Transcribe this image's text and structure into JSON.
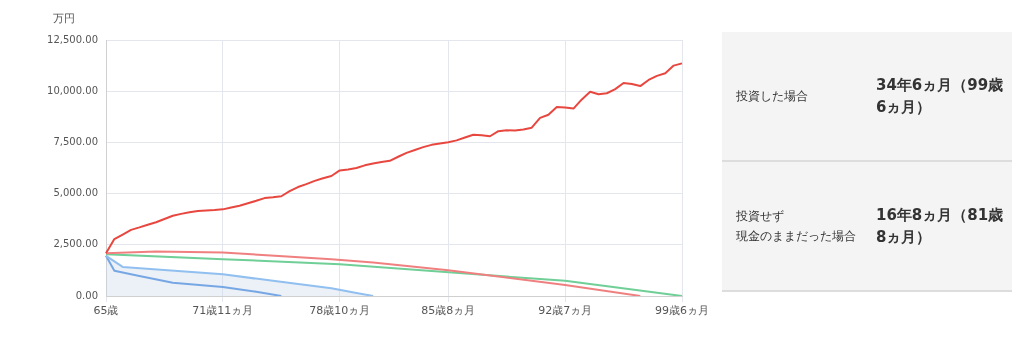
{
  "chart_data": [
    {
      "type": "line",
      "ylabel": "万円",
      "ylim": [
        0,
        12500
      ],
      "categories": [
        "65歳",
        null,
        null,
        null,
        null,
        null,
        null,
        null,
        null,
        null,
        null,
        null,
        null,
        null,
        "71歳11ヵ月",
        null,
        null,
        null,
        null,
        null,
        null,
        null,
        null,
        null,
        null,
        null,
        null,
        null,
        "78歳10ヵ月",
        null,
        null,
        null,
        null,
        null,
        null,
        null,
        null,
        null,
        null,
        null,
        null,
        "85歳8ヵ月",
        null,
        null,
        null,
        null,
        null,
        null,
        null,
        null,
        null,
        null,
        null,
        null,
        null,
        "92歳7ヵ月",
        null,
        null,
        null,
        null,
        null,
        null,
        null,
        null,
        null,
        null,
        null,
        null,
        null,
        "99歳6ヵ月"
      ],
      "yticks": [
        {
          "value": 0,
          "label": "0.00"
        },
        {
          "value": 2500,
          "label": "2,500.00"
        },
        {
          "value": 5000,
          "label": "5,000.00"
        },
        {
          "value": 7500,
          "label": "7,500.00"
        },
        {
          "value": 10000,
          "label": "10,000.00"
        },
        {
          "value": 12500,
          "label": "12,500.00"
        }
      ],
      "grid": true,
      "legend": false,
      "series": [
        {
          "color": "#e8473f",
          "values": [
            2090,
            2780,
            3000,
            3230,
            3350,
            3480,
            3600,
            3760,
            3920,
            4010,
            4090,
            4150,
            4180,
            4200,
            4230,
            4320,
            4410,
            4530,
            4650,
            4780,
            4820,
            4870,
            5120,
            5320,
            5460,
            5620,
            5750,
            5860,
            6130,
            6180,
            6250,
            6380,
            6470,
            6540,
            6600,
            6800,
            6990,
            7130,
            7270,
            7380,
            7450,
            7510,
            7600,
            7740,
            7870,
            7850,
            7800,
            8050,
            8090,
            8080,
            8130,
            8220,
            8700,
            8850,
            9230,
            9200,
            9150,
            9600,
            9970,
            9850,
            9900,
            10100,
            10400,
            10350,
            10250,
            10550,
            10750,
            10880,
            11250,
            11360
          ]
        },
        {
          "color": "#f08080",
          "values": [
            2090,
            null,
            null,
            null,
            null,
            null,
            2170,
            null,
            null,
            null,
            null,
            null,
            null,
            null,
            2120,
            null,
            null,
            null,
            null,
            null,
            null,
            null,
            null,
            null,
            null,
            null,
            null,
            1800,
            null,
            null,
            null,
            null,
            1630,
            null,
            null,
            null,
            null,
            null,
            null,
            null,
            null,
            1260,
            null,
            null,
            null,
            null,
            null,
            null,
            null,
            null,
            null,
            null,
            null,
            null,
            null,
            540,
            null,
            null,
            null,
            null,
            null,
            null,
            null,
            null,
            0,
            null,
            null,
            null,
            null,
            null
          ]
        },
        {
          "color": "#6fcf97",
          "values": [
            2040,
            null,
            null,
            null,
            null,
            null,
            null,
            null,
            null,
            null,
            null,
            null,
            null,
            null,
            1800,
            null,
            null,
            null,
            null,
            null,
            null,
            null,
            null,
            null,
            null,
            null,
            null,
            null,
            1550,
            null,
            null,
            null,
            null,
            null,
            null,
            null,
            null,
            null,
            null,
            null,
            null,
            null,
            null,
            null,
            null,
            null,
            null,
            null,
            null,
            null,
            null,
            null,
            null,
            null,
            null,
            740,
            null,
            null,
            null,
            null,
            null,
            null,
            null,
            null,
            null,
            null,
            null,
            null,
            null,
            0
          ]
        },
        {
          "type": "area",
          "color": "#90bff0",
          "values": [
            1960,
            null,
            1420,
            null,
            null,
            null,
            null,
            null,
            null,
            null,
            null,
            null,
            null,
            null,
            1060,
            null,
            null,
            null,
            null,
            null,
            740,
            null,
            null,
            null,
            null,
            null,
            null,
            380,
            null,
            null,
            150,
            null,
            0,
            null,
            null,
            null,
            null,
            null,
            null,
            null,
            null,
            null,
            null,
            null,
            null,
            null,
            null,
            null,
            null,
            null,
            null,
            null,
            null,
            null,
            null,
            null,
            null,
            null,
            null,
            null,
            null,
            null,
            null,
            null,
            null,
            null,
            null,
            null,
            null,
            null
          ]
        },
        {
          "color": "#4a90e2",
          "values": [
            1960,
            1230,
            null,
            null,
            980,
            null,
            null,
            null,
            650,
            null,
            null,
            null,
            null,
            null,
            440,
            null,
            null,
            null,
            210,
            null,
            null,
            0,
            null,
            null,
            null,
            null,
            null,
            null,
            null,
            null,
            null,
            null,
            null,
            null,
            null,
            null,
            null,
            null,
            null,
            null,
            null,
            null,
            null,
            null,
            null,
            null,
            null,
            null,
            null,
            null,
            null,
            null,
            null,
            null,
            null,
            null,
            null,
            null,
            null,
            null,
            null,
            null,
            null,
            null,
            null,
            null,
            null,
            null,
            null,
            null
          ]
        }
      ]
    },
    {
      "type": "other",
      "annotations": [
        "投資した場合",
        "34年6ヵ月（99歳6ヵ月）",
        "投資せず",
        "現金のままだった場合",
        "16年8ヵ月（81歳8ヵ月）"
      ]
    }
  ]
}
